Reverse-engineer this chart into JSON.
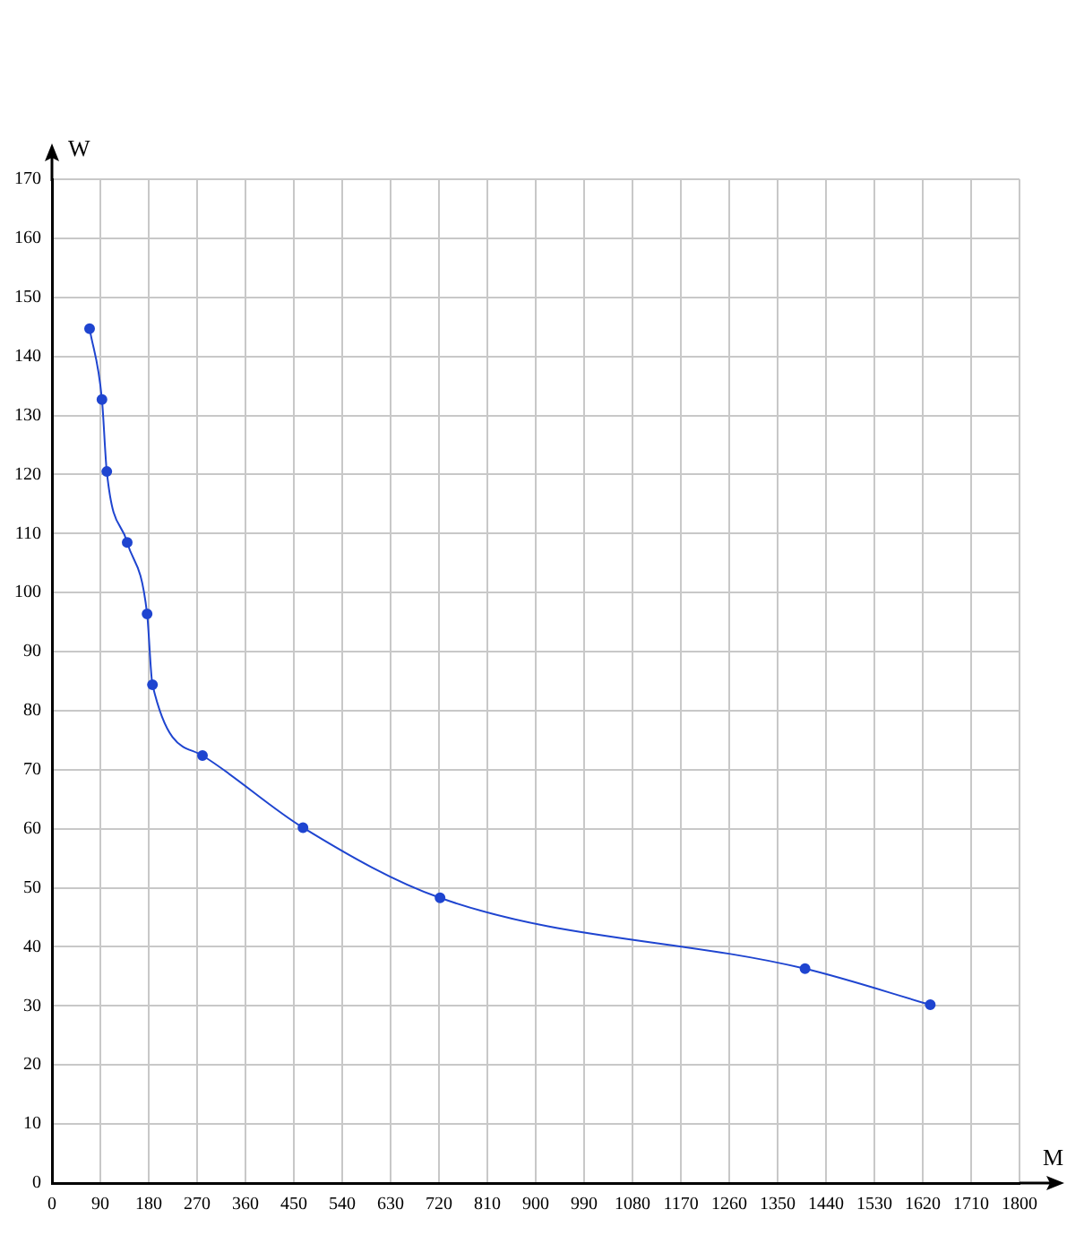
{
  "chart_data": {
    "type": "line",
    "xlabel": "M",
    "ylabel": "W",
    "x": [
      70,
      93,
      102,
      140,
      177,
      187,
      280,
      467,
      722,
      1401,
      1634
    ],
    "series": [
      {
        "color": "#1f45d0",
        "values": [
          144.7,
          132.7,
          120.5,
          108.5,
          96.4,
          84.4,
          72.4,
          60.2,
          48.3,
          36.3,
          30.2
        ]
      }
    ],
    "xlim": [
      0,
      1800
    ],
    "xticks": [
      0,
      90,
      180,
      270,
      360,
      450,
      540,
      630,
      720,
      810,
      900,
      990,
      1080,
      1170,
      1260,
      1350,
      1440,
      1530,
      1620,
      1710,
      1800
    ],
    "ylim": [
      0,
      170
    ],
    "yticks": [
      0,
      10,
      20,
      30,
      40,
      50,
      60,
      70,
      80,
      90,
      100,
      110,
      120,
      130,
      140,
      150,
      160,
      170
    ],
    "grid": true,
    "marker": "circle",
    "line_style": "solid"
  }
}
